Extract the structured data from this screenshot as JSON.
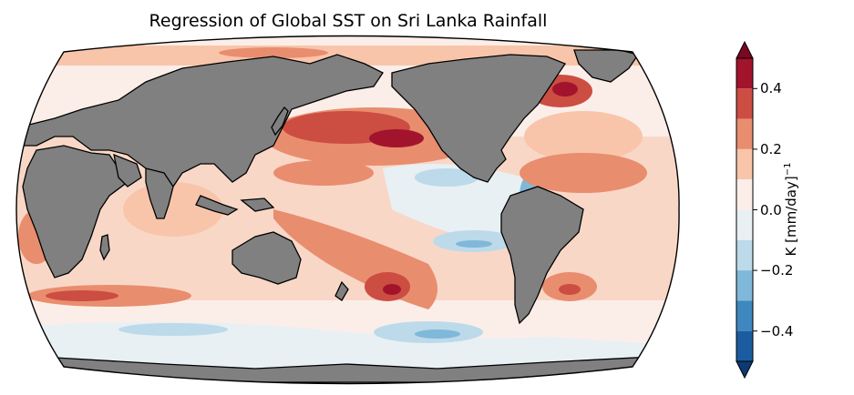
{
  "title": "Regression of Global SST on Sri Lanka Rainfall",
  "colorbar": {
    "label_main": "K [mm/day]",
    "label_exp": "−1",
    "ticks": [
      {
        "value": 0.4,
        "label": "0.4"
      },
      {
        "value": 0.2,
        "label": "0.2"
      },
      {
        "value": 0.0,
        "label": "0.0"
      },
      {
        "value": -0.2,
        "label": "−0.2"
      },
      {
        "value": -0.4,
        "label": "−0.4"
      }
    ],
    "range": [
      -0.5,
      0.5
    ],
    "levels": [
      {
        "from": 0.4,
        "to": 0.5,
        "color": "#a2142c"
      },
      {
        "from": 0.3,
        "to": 0.4,
        "color": "#cc4d42"
      },
      {
        "from": 0.2,
        "to": 0.3,
        "color": "#e98d6f"
      },
      {
        "from": 0.1,
        "to": 0.2,
        "color": "#f8c5ab"
      },
      {
        "from": 0.0,
        "to": 0.1,
        "color": "#fbeee8"
      },
      {
        "from": -0.1,
        "to": 0.0,
        "color": "#e8f0f4"
      },
      {
        "from": -0.2,
        "to": -0.1,
        "color": "#bcdaea"
      },
      {
        "from": -0.3,
        "to": -0.2,
        "color": "#7fb8d8"
      },
      {
        "from": -0.4,
        "to": -0.3,
        "color": "#3e88bf"
      },
      {
        "from": -0.5,
        "to": -0.4,
        "color": "#1a5c9f"
      }
    ],
    "extend_max_color": "#7a0822",
    "extend_min_color": "#0d3a73"
  },
  "map": {
    "projection": "Robinson",
    "land_color": "#808080",
    "coast_color": "#000000"
  }
}
